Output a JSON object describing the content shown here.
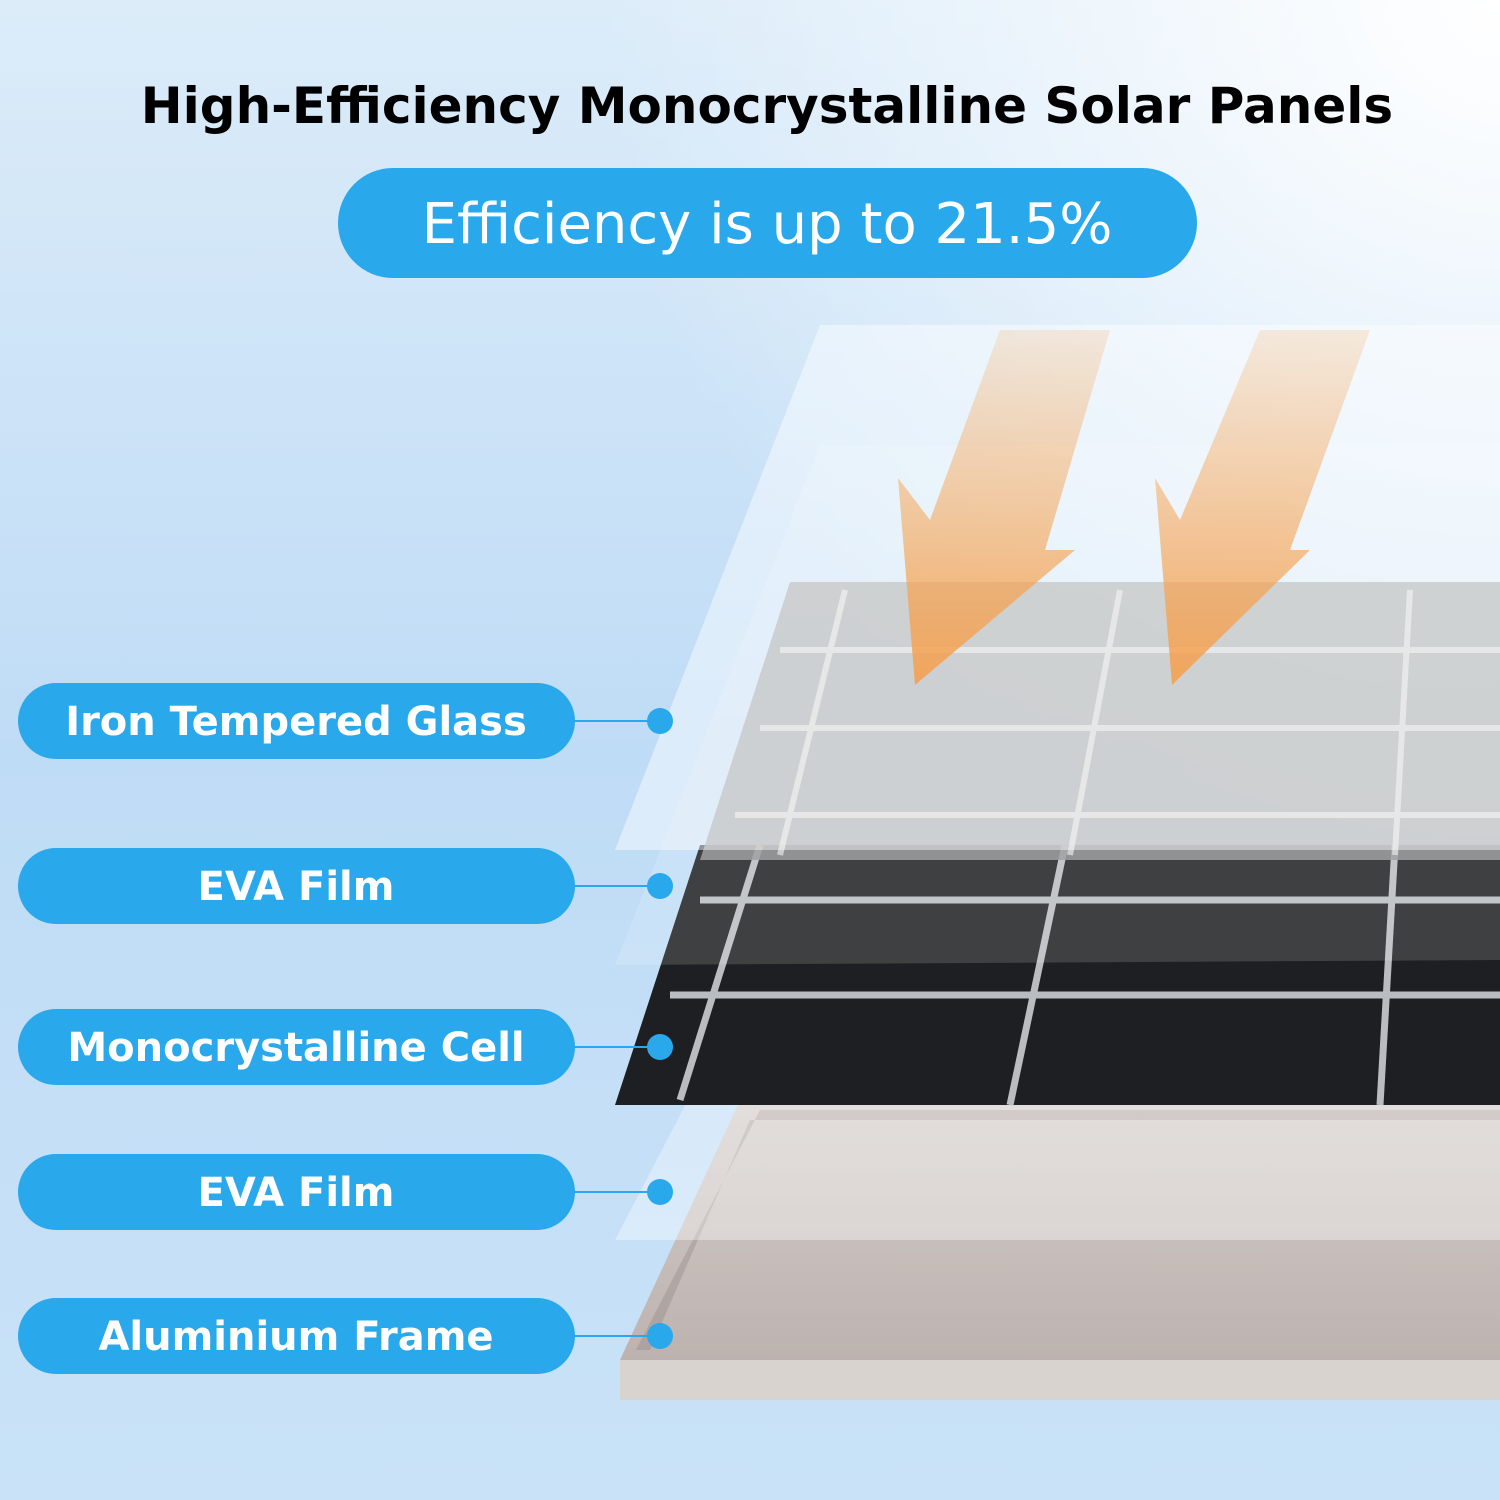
{
  "header": {
    "title": "High-Efficiency Monocrystalline Solar Panels",
    "subtitle": "Efficiency is up to 21.5%"
  },
  "layers": [
    {
      "label": "Iron Tempered Glass"
    },
    {
      "label": "EVA Film"
    },
    {
      "label": "Monocrystalline Cell"
    },
    {
      "label": "EVA Film"
    },
    {
      "label": "Aluminium Frame"
    }
  ]
}
